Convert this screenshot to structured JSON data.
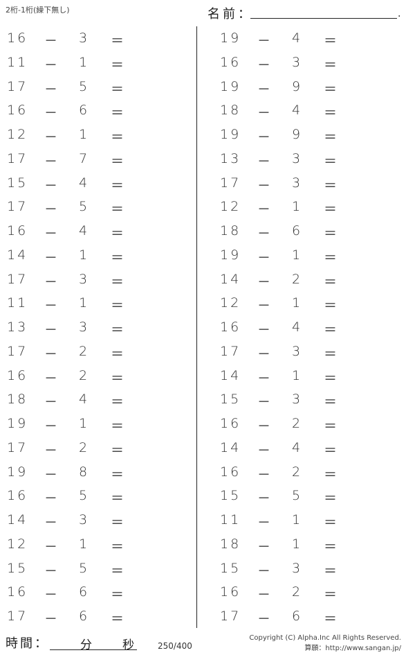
{
  "header": {
    "subtitle": "2桁-1桁(繰下無し)",
    "name_label": "名前：",
    "name_dot": "."
  },
  "operator": "－",
  "equals": "＝",
  "left_problems": [
    [
      "16",
      "3"
    ],
    [
      "11",
      "1"
    ],
    [
      "17",
      "5"
    ],
    [
      "16",
      "6"
    ],
    [
      "12",
      "1"
    ],
    [
      "17",
      "7"
    ],
    [
      "15",
      "4"
    ],
    [
      "17",
      "5"
    ],
    [
      "16",
      "4"
    ],
    [
      "14",
      "1"
    ],
    [
      "17",
      "3"
    ],
    [
      "11",
      "1"
    ],
    [
      "13",
      "3"
    ],
    [
      "17",
      "2"
    ],
    [
      "16",
      "2"
    ],
    [
      "18",
      "4"
    ],
    [
      "19",
      "1"
    ],
    [
      "17",
      "2"
    ],
    [
      "19",
      "8"
    ],
    [
      "16",
      "5"
    ],
    [
      "14",
      "3"
    ],
    [
      "12",
      "1"
    ],
    [
      "15",
      "5"
    ],
    [
      "16",
      "6"
    ],
    [
      "17",
      "6"
    ]
  ],
  "right_problems": [
    [
      "19",
      "4"
    ],
    [
      "16",
      "3"
    ],
    [
      "19",
      "9"
    ],
    [
      "18",
      "4"
    ],
    [
      "19",
      "9"
    ],
    [
      "13",
      "3"
    ],
    [
      "17",
      "3"
    ],
    [
      "12",
      "1"
    ],
    [
      "18",
      "6"
    ],
    [
      "19",
      "1"
    ],
    [
      "14",
      "2"
    ],
    [
      "12",
      "1"
    ],
    [
      "16",
      "4"
    ],
    [
      "17",
      "3"
    ],
    [
      "14",
      "1"
    ],
    [
      "15",
      "3"
    ],
    [
      "16",
      "2"
    ],
    [
      "14",
      "4"
    ],
    [
      "16",
      "2"
    ],
    [
      "15",
      "5"
    ],
    [
      "11",
      "1"
    ],
    [
      "18",
      "1"
    ],
    [
      "15",
      "3"
    ],
    [
      "16",
      "2"
    ],
    [
      "17",
      "6"
    ]
  ],
  "footer": {
    "time_label": "時間：",
    "minutes_label": "分",
    "seconds_label": "秒",
    "count": "250/400",
    "copyright": "Copyright (C) Alpha.Inc All Rights Reserved.",
    "site": "算願：http://www.sangan.jp/"
  }
}
